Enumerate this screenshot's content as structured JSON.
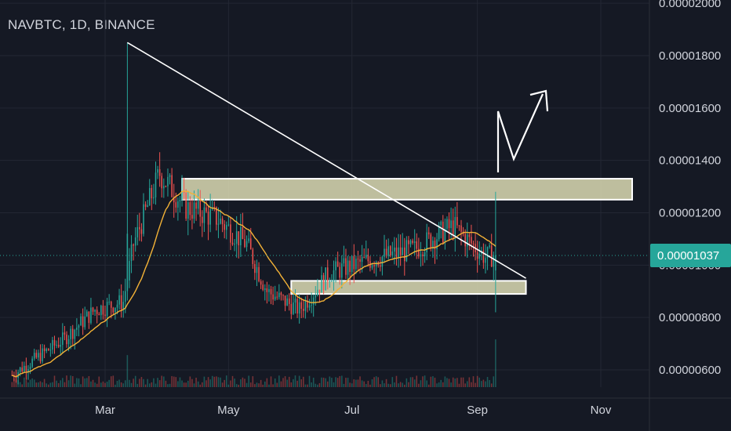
{
  "header": {
    "title": "NAVBTC, 1D, BINANCE"
  },
  "colors": {
    "background": "#151924",
    "grid": "#232733",
    "up": "#26a69a",
    "down": "#ef5350",
    "ma": "#f3b237",
    "zone_fill": "#dcdcb4",
    "trendline": "#ffffff",
    "last_price_badge": "#26a69a",
    "text": "#d1d4dc"
  },
  "chart_data": {
    "type": "candlestick",
    "title": "NAVBTC, 1D, BINANCE",
    "x_ticks": [
      "Mar",
      "May",
      "Jul",
      "Sep",
      "Nov"
    ],
    "y_ticks": [
      "0.00000600",
      "0.00000800",
      "0.00001000",
      "0.00001200",
      "0.00001400",
      "0.00001600",
      "0.00001800",
      "0.00002000"
    ],
    "ylim": [
      5.2e-06,
      2e-05
    ],
    "last_price": 1.037e-05,
    "last_price_label": "0.00001037",
    "grid": true,
    "price_series_keypoints": [
      [
        "2020-01-15",
        5.8e-06
      ],
      [
        "2020-02-10",
        7.2e-06
      ],
      [
        "2020-02-25",
        8.3e-06
      ],
      [
        "2020-03-10",
        8.6e-06
      ],
      [
        "2020-03-15",
        1.08e-05
      ],
      [
        "2020-03-28",
        1.35e-05
      ],
      [
        "2020-04-10",
        1.22e-05
      ],
      [
        "2020-04-25",
        1.18e-05
      ],
      [
        "2020-05-10",
        1.08e-05
      ],
      [
        "2020-05-20",
        9e-06
      ],
      [
        "2020-06-05",
        8.3e-06
      ],
      [
        "2020-06-20",
        9.7e-06
      ],
      [
        "2020-07-10",
        1.02e-05
      ],
      [
        "2020-08-01",
        1.06e-05
      ],
      [
        "2020-08-20",
        1.15e-05
      ],
      [
        "2020-09-05",
        1.03e-05
      ],
      [
        "2020-09-10",
        1.04e-05
      ]
    ],
    "annotations": {
      "resistance_zone": {
        "low": 1.25e-05,
        "high": 1.33e-05,
        "from": "2020-04-08",
        "to": "2020-11-20"
      },
      "support_zone": {
        "low": 8.9e-06,
        "high": 9.4e-06,
        "from": "2020-06-01",
        "to": "2020-09-25"
      },
      "trendline": {
        "from": [
          "2020-03-12",
          1.85e-05
        ],
        "to": [
          "2020-09-25",
          9.5e-06
        ]
      },
      "projection_arrow": true
    }
  }
}
